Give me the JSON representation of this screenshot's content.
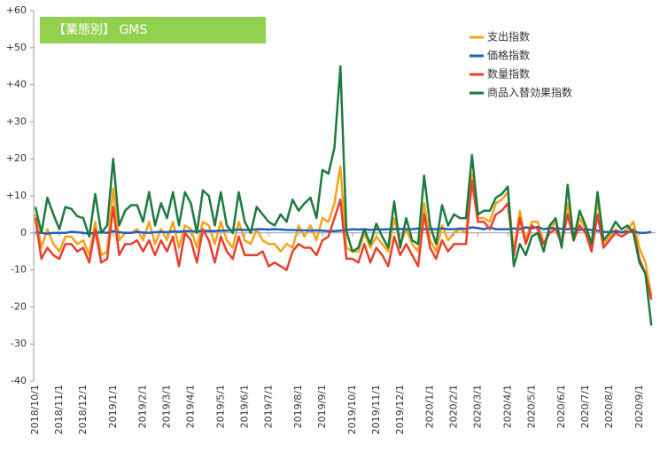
{
  "chart_data": {
    "type": "line",
    "title": "【業態別】 GMS",
    "categories": [
      "2018/10/1",
      null,
      null,
      null,
      "2018/11/1",
      null,
      null,
      null,
      "2018/12/1",
      null,
      null,
      null,
      null,
      "2019/1/1",
      null,
      null,
      null,
      null,
      "2019/2/1",
      null,
      null,
      null,
      "2019/3/1",
      null,
      null,
      null,
      "2019/4/1",
      null,
      null,
      null,
      null,
      "2019/5/1",
      null,
      null,
      null,
      "2019/6/1",
      null,
      null,
      null,
      "2019/7/1",
      null,
      null,
      null,
      null,
      "2019/8/1",
      null,
      null,
      null,
      "2019/9/1",
      null,
      null,
      null,
      null,
      "2019/10/1",
      null,
      null,
      null,
      "2019/11/1",
      null,
      null,
      null,
      "2019/12/1",
      null,
      null,
      null,
      null,
      "2020/1/1",
      null,
      null,
      null,
      "2020/2/1",
      null,
      null,
      null,
      "2020/3/1",
      null,
      null,
      null,
      null,
      "2020/4/1",
      null,
      null,
      null,
      "2020/5/1",
      null,
      null,
      null,
      null,
      "2020/6/1",
      null,
      null,
      null,
      "2020/7/1",
      null,
      null,
      null,
      "2020/8/1",
      null,
      null,
      null,
      null,
      "2020/9/1",
      null,
      null
    ],
    "series": [
      {
        "name": "支出指数",
        "color": "#f5a31a",
        "values": [
          5,
          -4,
          1,
          -3,
          -5,
          -1,
          -1,
          -3,
          -2,
          -6,
          3,
          -6,
          -5,
          12,
          -2,
          0,
          0,
          1,
          -2,
          3,
          -3,
          1,
          -2,
          3,
          -4,
          2,
          1,
          -4,
          3,
          2,
          -3,
          3,
          -2,
          -4,
          3,
          -2,
          -3,
          1,
          -2,
          -3,
          -3,
          -5,
          -3,
          -4,
          2,
          -1,
          2,
          -2,
          4,
          3,
          8,
          18,
          -4,
          -5,
          -5,
          0,
          -4,
          -1,
          -3,
          -5,
          4,
          -3,
          1,
          -3,
          -5,
          8,
          -2,
          -5,
          2,
          -2,
          0,
          1,
          0,
          16,
          4,
          4,
          3,
          8,
          9,
          11,
          -5,
          6,
          -2,
          3,
          3,
          -3,
          1,
          3,
          -3,
          8,
          -2,
          4,
          1,
          -4,
          9,
          -3,
          -1,
          1,
          0,
          1,
          3,
          -4,
          -8,
          -17
        ]
      },
      {
        "name": "価格指数",
        "color": "#1f5fbf",
        "values": [
          0.3,
          0,
          -0.2,
          0,
          0,
          0,
          0.3,
          0.2,
          0,
          -0.2,
          0,
          0.2,
          0,
          0.5,
          0.2,
          0,
          0,
          0.3,
          0.1,
          0,
          0.2,
          0.3,
          0.2,
          0.4,
          0.3,
          0.5,
          0.5,
          0.4,
          0.6,
          0.5,
          0.5,
          0.6,
          0.6,
          0.8,
          0.9,
          0.8,
          0.8,
          1,
          1,
          0.9,
          1,
          0.9,
          0.8,
          0.8,
          0.7,
          0.7,
          0.6,
          0.7,
          0.6,
          0.5,
          0.5,
          0.6,
          0.8,
          1,
          0.9,
          1,
          0.8,
          1,
          0.9,
          1,
          1,
          1.1,
          1,
          1,
          1.2,
          1,
          1.1,
          1,
          1.2,
          1,
          1,
          1.2,
          1.1,
          1.5,
          1.3,
          1,
          1.5,
          1,
          1,
          1,
          1.2,
          1,
          1.5,
          1.2,
          1.6,
          1,
          1.3,
          1.2,
          1.1,
          1,
          1.2,
          0.8,
          1,
          0.8,
          0.6,
          0.3,
          0.2,
          0.4,
          0.2,
          0.3,
          0.5,
          0,
          0,
          0.3
        ]
      },
      {
        "name": "数量指数",
        "color": "#e8402f",
        "values": [
          4,
          -7,
          -4,
          -6,
          -7,
          -3,
          -3,
          -5,
          -4,
          -8,
          1,
          -8,
          -7,
          7,
          -6,
          -3,
          -3,
          -2,
          -5,
          -2,
          -6,
          -2,
          -5,
          -1,
          -9,
          0,
          -2,
          -8,
          1,
          -2,
          -8,
          -1,
          -5,
          -7,
          -1,
          -6,
          -6,
          -6,
          -5,
          -9,
          -8,
          -9,
          -10,
          -5,
          -3,
          -4,
          -4,
          -6,
          -2,
          -1,
          4,
          9,
          -7,
          -7,
          -8,
          -3,
          -8,
          -4,
          -6,
          -9,
          -1,
          -6,
          -3,
          -6,
          -9,
          5,
          -4,
          -7,
          -2,
          -5,
          -3,
          -3,
          -3,
          14,
          3,
          3,
          1,
          5,
          6,
          8,
          -6,
          4,
          -3,
          2,
          1,
          -3,
          0,
          1,
          -3,
          5,
          -2,
          2,
          0,
          -5,
          5,
          -4,
          -2,
          0,
          -1,
          0,
          1,
          -7,
          -11,
          -18
        ]
      },
      {
        "name": "商品入替効果指数",
        "color": "#1e7a3e",
        "values": [
          7,
          0,
          9.5,
          5,
          1,
          7,
          6.5,
          4.5,
          4,
          -1,
          10.5,
          0,
          2,
          20,
          2,
          6,
          7.5,
          7.5,
          3,
          11,
          2,
          8,
          4,
          11,
          2,
          11,
          8,
          0,
          11.5,
          10,
          2,
          11,
          2,
          0,
          11,
          3,
          0,
          7,
          5,
          3,
          2,
          5,
          3,
          9,
          6,
          8,
          9.5,
          4,
          17,
          16,
          23,
          45,
          0.5,
          -5,
          -4,
          1,
          -3,
          2.5,
          -1,
          -4,
          8.5,
          -4,
          4,
          -2,
          -3,
          15.5,
          2,
          -3,
          7.5,
          2,
          5,
          4,
          4,
          21,
          5,
          6,
          6,
          9.5,
          10.5,
          12.5,
          -9,
          -3,
          -6,
          -1,
          0,
          -5,
          2,
          4,
          -4,
          13,
          -2,
          6,
          2,
          -3,
          11,
          -2,
          0,
          3,
          1,
          2,
          0,
          -8,
          -11,
          -25
        ]
      }
    ],
    "ylim": [
      -40,
      60
    ],
    "yticks": [
      {
        "value": 60,
        "label": "+60"
      },
      {
        "value": 50,
        "label": "+50"
      },
      {
        "value": 40,
        "label": "+40"
      },
      {
        "value": 30,
        "label": "+30"
      },
      {
        "value": 20,
        "label": "+20"
      },
      {
        "value": 10,
        "label": "+10"
      },
      0,
      -10,
      -20,
      -30,
      -40
    ],
    "legend": "upper right"
  }
}
